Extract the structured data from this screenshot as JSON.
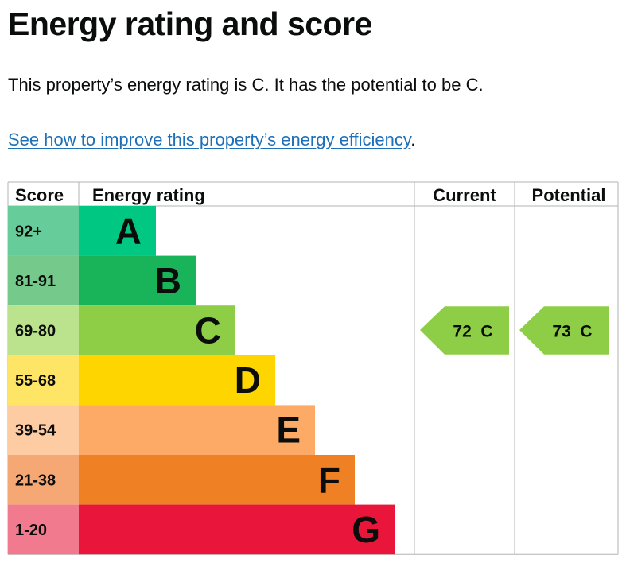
{
  "page": {
    "title": "Energy rating and score",
    "summary": "This property’s energy rating is C. It has the potential to be C.",
    "link_text": "See how to improve this property’s energy efficiency",
    "link_suffix": "."
  },
  "chart_data": {
    "type": "table",
    "headers": {
      "score": "Score",
      "rating": "Energy rating",
      "current": "Current",
      "potential": "Potential"
    },
    "bands": [
      {
        "score": "92+",
        "letter": "A",
        "color": "#008054",
        "score_color": "#66cc99",
        "band_color": "#00c781"
      },
      {
        "score": "81-91",
        "letter": "B",
        "color": "#19b459",
        "score_color": "#75c98b",
        "band_color": "#19b459"
      },
      {
        "score": "69-80",
        "letter": "C",
        "color": "#8dce46",
        "score_color": "#bbe28c",
        "band_color": "#8dce46"
      },
      {
        "score": "55-68",
        "letter": "D",
        "color": "#ffd500",
        "score_color": "#ffe566",
        "band_color": "#ffd500"
      },
      {
        "score": "39-54",
        "letter": "E",
        "color": "#fcaa65",
        "score_color": "#fdcca3",
        "band_color": "#fcaa65"
      },
      {
        "score": "21-38",
        "letter": "F",
        "color": "#ef8023",
        "score_color": "#f5a874",
        "band_color": "#ef8023"
      },
      {
        "score": "1-20",
        "letter": "G",
        "color": "#e9153b",
        "score_color": "#f27a8e",
        "band_color": "#e9153b"
      }
    ],
    "current": {
      "score": 72,
      "letter": "C",
      "label": "72  C",
      "color": "#8dce46"
    },
    "potential": {
      "score": 73,
      "letter": "C",
      "label": "73  C",
      "color": "#8dce46"
    }
  }
}
